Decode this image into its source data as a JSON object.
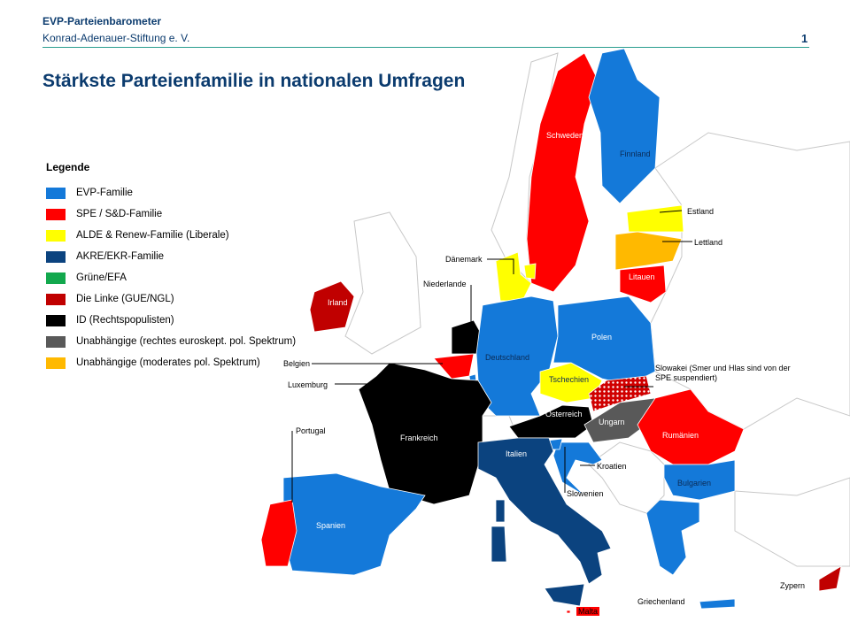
{
  "header": {
    "brand": "EVP-Parteienbarometer",
    "subtitle": "Konrad-Adenauer-Stiftung e. V.",
    "page_number": "1"
  },
  "title": "Stärkste Parteienfamilie  in nationalen Umfragen",
  "legend": {
    "title": "Legende",
    "items": [
      {
        "key": "evp",
        "label": "EVP-Familie",
        "color": "#1479d9"
      },
      {
        "key": "spe",
        "label": "SPE / S&D-Familie",
        "color": "#ff0000"
      },
      {
        "key": "alde",
        "label": "ALDE & Renew-Familie (Liberale)",
        "color": "#ffff00"
      },
      {
        "key": "akre",
        "label": "AKRE/EKR-Familie",
        "color": "#0b437f"
      },
      {
        "key": "gruene",
        "label": "Grüne/EFA",
        "color": "#12a84d"
      },
      {
        "key": "linke",
        "label": "Die Linke (GUE/NGL)",
        "color": "#c00000"
      },
      {
        "key": "id",
        "label": "ID (Rechtspopulisten)",
        "color": "#000000"
      },
      {
        "key": "unabh_rechts",
        "label": "Unabhängige (rechtes euroskept. pol. Spektrum)",
        "color": "#595959"
      },
      {
        "key": "unabh_moderat",
        "label": "Unabhängige (moderates pol. Spektrum)",
        "color": "#ffb900"
      }
    ]
  },
  "countries": [
    {
      "id": "schweden",
      "name": "Schweden",
      "family": "spe"
    },
    {
      "id": "finnland",
      "name": "Finnland",
      "family": "evp"
    },
    {
      "id": "estland",
      "name": "Estland",
      "family": "alde"
    },
    {
      "id": "lettland",
      "name": "Lettland",
      "family": "unabh_moderat"
    },
    {
      "id": "litauen",
      "name": "Litauen",
      "family": "spe"
    },
    {
      "id": "daenemark",
      "name": "Dänemark",
      "family": "alde"
    },
    {
      "id": "irland",
      "name": "Irland",
      "family": "linke"
    },
    {
      "id": "niederlande",
      "name": "Niederlande",
      "family": "id"
    },
    {
      "id": "belgien",
      "name": "Belgien",
      "family": "spe"
    },
    {
      "id": "luxemburg",
      "name": "Luxemburg",
      "family": "evp"
    },
    {
      "id": "deutschland",
      "name": "Deutschland",
      "family": "evp"
    },
    {
      "id": "polen",
      "name": "Polen",
      "family": "evp"
    },
    {
      "id": "tschechien",
      "name": "Tschechien",
      "family": "alde"
    },
    {
      "id": "slowakei",
      "name": "Slowakei (Smer  und Hlas sind von der SPE suspendiert)",
      "family": "spe",
      "pattern": "hatched"
    },
    {
      "id": "oesterreich",
      "name": "Österreich",
      "family": "id"
    },
    {
      "id": "ungarn",
      "name": "Ungarn",
      "family": "unabh_rechts"
    },
    {
      "id": "rumaenien",
      "name": "Rumänien",
      "family": "spe"
    },
    {
      "id": "bulgarien",
      "name": "Bulgarien",
      "family": "evp"
    },
    {
      "id": "griechenland",
      "name": "Griechenland",
      "family": "evp"
    },
    {
      "id": "kroatien",
      "name": "Kroatien",
      "family": "evp"
    },
    {
      "id": "slowenien",
      "name": "Slowenien",
      "family": "evp"
    },
    {
      "id": "frankreich",
      "name": "Frankreich",
      "family": "id"
    },
    {
      "id": "italien",
      "name": "Italien",
      "family": "akre"
    },
    {
      "id": "spanien",
      "name": "Spanien",
      "family": "evp"
    },
    {
      "id": "portugal",
      "name": "Portugal",
      "family": "spe"
    },
    {
      "id": "zypern",
      "name": "Zypern",
      "family": "linke"
    },
    {
      "id": "malta",
      "name": "Malta",
      "family": "spe"
    }
  ]
}
